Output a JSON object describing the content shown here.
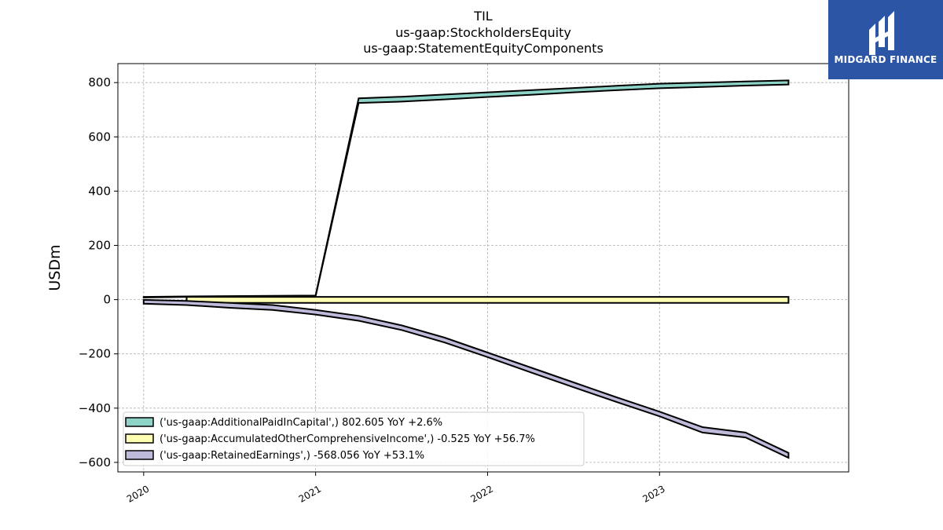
{
  "chart_data": {
    "type": "area",
    "title_lines": [
      "TIL",
      "us-gaap:StockholdersEquity",
      "us-gaap:StatementEquityComponents"
    ],
    "ylabel": "USDm",
    "xlabel": "",
    "ylim": [
      -635,
      870
    ],
    "xlim": [
      2019.85,
      2024.1
    ],
    "y_ticks": [
      -600,
      -400,
      -200,
      0,
      200,
      400,
      600,
      800
    ],
    "y_tick_labels": [
      "−600",
      "−400",
      "−200",
      "0",
      "200",
      "400",
      "600",
      "800"
    ],
    "x_ticks": [
      2020,
      2021,
      2022,
      2023
    ],
    "x_tick_labels": [
      "2020",
      "2021",
      "2022",
      "2023"
    ],
    "grid": true,
    "legend_position": "lower-left",
    "series": [
      {
        "name": "('us-gaap:AdditionalPaidInCapital',) 802.605 YoY +2.6%",
        "color": "#8dd3c7",
        "x": [
          2020.0,
          2020.25,
          2021.0,
          2021.25,
          2021.5,
          2021.75,
          2022.0,
          2022.25,
          2022.5,
          2022.75,
          2023.0,
          2023.25,
          2023.5,
          2023.75
        ],
        "upper": [
          10,
          12,
          15,
          742,
          748,
          756,
          764,
          772,
          780,
          788,
          796,
          800,
          804,
          808
        ],
        "lower": [
          8,
          10,
          12,
          725,
          730,
          738,
          747,
          755,
          764,
          772,
          779,
          784,
          789,
          793
        ]
      },
      {
        "name": "('us-gaap:AccumulatedOtherComprehensiveIncome',) -0.525 YoY +56.7%",
        "color": "#ffffb3",
        "x": [
          2020.25,
          2023.75
        ],
        "upper": [
          10,
          10
        ],
        "lower": [
          -12,
          -12
        ]
      },
      {
        "name": "('us-gaap:RetainedEarnings',) -568.056 YoY +53.1%",
        "color": "#bebada",
        "x": [
          2020.0,
          2020.25,
          2020.5,
          2020.75,
          2021.0,
          2021.25,
          2021.5,
          2021.75,
          2022.0,
          2022.25,
          2022.5,
          2022.75,
          2023.0,
          2023.25,
          2023.5,
          2023.75
        ],
        "upper": [
          -1,
          -5,
          -12,
          -20,
          -38,
          -60,
          -95,
          -140,
          -195,
          -250,
          -305,
          -360,
          -413,
          -470,
          -490,
          -565
        ],
        "lower": [
          -15,
          -20,
          -30,
          -38,
          -55,
          -78,
          -112,
          -158,
          -212,
          -268,
          -323,
          -377,
          -430,
          -490,
          -508,
          -583
        ]
      }
    ]
  },
  "logo": {
    "text": "MIDGARD FINANCE",
    "background": "#2d55a6"
  }
}
